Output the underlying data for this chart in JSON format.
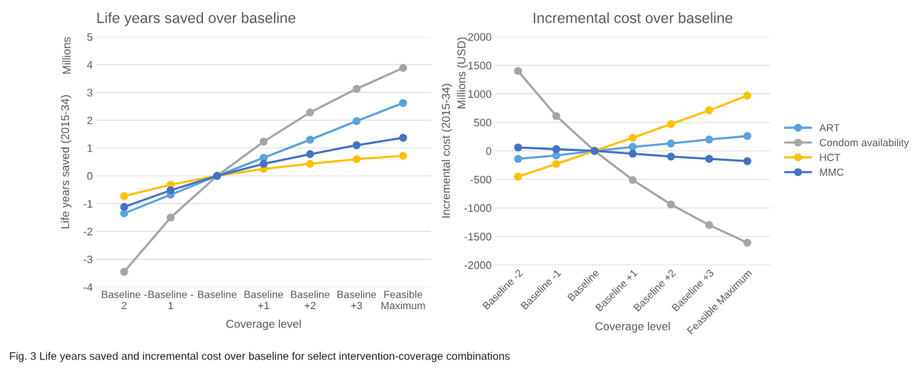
{
  "chart_data": [
    {
      "type": "line",
      "title": "Life years saved over baseline",
      "xlabel": "Coverage level",
      "ylabel": "Life years saved (2015-34)",
      "categories": [
        "Baseline -\n2",
        "Baseline -\n1",
        "Baseline",
        "Baseline\n+1",
        "Baseline\n+2",
        "Baseline\n+3",
        "Feasible\nMaximum"
      ],
      "series": [
        {
          "color": "#5ba3dc",
          "values": [
            -1.35,
            -0.68,
            0,
            0.65,
            1.3,
            1.97,
            2.62
          ]
        },
        {
          "color": "#a5a5a5",
          "values": [
            -3.45,
            -1.5,
            0,
            1.23,
            2.28,
            3.13,
            3.88
          ]
        },
        {
          "color": "#ffc000",
          "values": [
            -0.73,
            -0.32,
            0,
            0.25,
            0.43,
            0.6,
            0.72
          ]
        },
        {
          "color": "#4472c4",
          "values": [
            -1.12,
            -0.52,
            0,
            0.43,
            0.78,
            1.1,
            1.37
          ]
        }
      ],
      "ylim": [
        -4,
        5
      ],
      "yticks": [
        -4,
        -3,
        -2,
        -1,
        0,
        1,
        2,
        3,
        4,
        5
      ],
      "grid": "y",
      "marker": "circle",
      "annotations": [
        "Millions",
        "Fig. 3 Life years saved and incremental cost over baseline for select intervention-coverage combinations"
      ]
    },
    {
      "type": "line",
      "title": "Incremental cost over baseline",
      "xlabel": "Coverage level",
      "ylabel": "Incremental cost (2015-34)",
      "categories": [
        "Baseline -2",
        "Baseline -1",
        "Baseline",
        "Baseline +1",
        "Baseline +2",
        "Baseline +3",
        "Feasible Maximum"
      ],
      "series": [
        {
          "name": "ART",
          "color": "#5ba3dc",
          "values": [
            -140,
            -80,
            0,
            70,
            130,
            200,
            260
          ]
        },
        {
          "name": "Condom availability",
          "color": "#a5a5a5",
          "values": [
            1400,
            610,
            0,
            -510,
            -940,
            -1300,
            -1610
          ]
        },
        {
          "name": "HCT",
          "color": "#ffc000",
          "values": [
            -450,
            -230,
            0,
            230,
            470,
            710,
            970
          ]
        },
        {
          "name": "MMC",
          "color": "#4472c4",
          "values": [
            60,
            30,
            0,
            -50,
            -100,
            -140,
            -180
          ]
        }
      ],
      "ylim": [
        -2000,
        2000
      ],
      "yticks": [
        -2000,
        -1500,
        -1000,
        -500,
        0,
        500,
        1000,
        1500,
        2000
      ],
      "grid": "y",
      "marker": "circle",
      "legend": "right",
      "annotations": [
        "Millions (USD)"
      ]
    }
  ]
}
